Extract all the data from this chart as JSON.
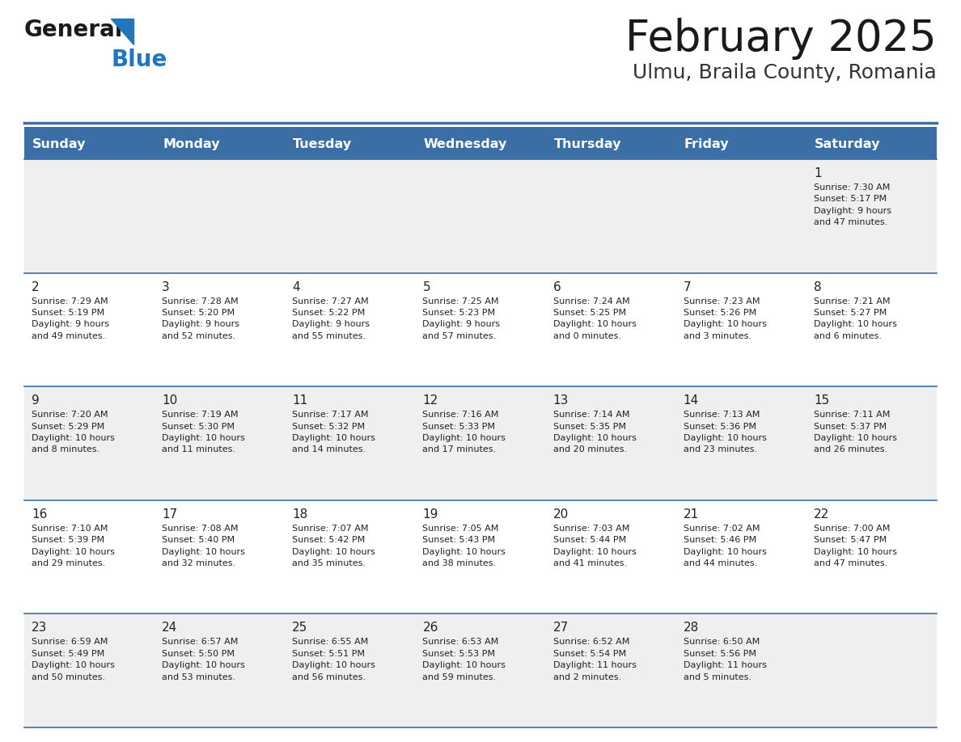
{
  "title": "February 2025",
  "subtitle": "Ulmu, Braila County, Romania",
  "header_bg": "#3a6ea5",
  "header_text_color": "#ffffff",
  "days_of_week": [
    "Sunday",
    "Monday",
    "Tuesday",
    "Wednesday",
    "Thursday",
    "Friday",
    "Saturday"
  ],
  "row_bg_even": "#efefef",
  "row_bg_odd": "#ffffff",
  "cell_text_color": "#222222",
  "separator_color": "#3a6ea5",
  "title_color": "#1a1a1a",
  "subtitle_color": "#333333",
  "logo_black": "#1a1a1a",
  "logo_blue": "#2176be",
  "calendar_data": [
    [
      {
        "day": "",
        "info": ""
      },
      {
        "day": "",
        "info": ""
      },
      {
        "day": "",
        "info": ""
      },
      {
        "day": "",
        "info": ""
      },
      {
        "day": "",
        "info": ""
      },
      {
        "day": "",
        "info": ""
      },
      {
        "day": "1",
        "info": "Sunrise: 7:30 AM\nSunset: 5:17 PM\nDaylight: 9 hours\nand 47 minutes."
      }
    ],
    [
      {
        "day": "2",
        "info": "Sunrise: 7:29 AM\nSunset: 5:19 PM\nDaylight: 9 hours\nand 49 minutes."
      },
      {
        "day": "3",
        "info": "Sunrise: 7:28 AM\nSunset: 5:20 PM\nDaylight: 9 hours\nand 52 minutes."
      },
      {
        "day": "4",
        "info": "Sunrise: 7:27 AM\nSunset: 5:22 PM\nDaylight: 9 hours\nand 55 minutes."
      },
      {
        "day": "5",
        "info": "Sunrise: 7:25 AM\nSunset: 5:23 PM\nDaylight: 9 hours\nand 57 minutes."
      },
      {
        "day": "6",
        "info": "Sunrise: 7:24 AM\nSunset: 5:25 PM\nDaylight: 10 hours\nand 0 minutes."
      },
      {
        "day": "7",
        "info": "Sunrise: 7:23 AM\nSunset: 5:26 PM\nDaylight: 10 hours\nand 3 minutes."
      },
      {
        "day": "8",
        "info": "Sunrise: 7:21 AM\nSunset: 5:27 PM\nDaylight: 10 hours\nand 6 minutes."
      }
    ],
    [
      {
        "day": "9",
        "info": "Sunrise: 7:20 AM\nSunset: 5:29 PM\nDaylight: 10 hours\nand 8 minutes."
      },
      {
        "day": "10",
        "info": "Sunrise: 7:19 AM\nSunset: 5:30 PM\nDaylight: 10 hours\nand 11 minutes."
      },
      {
        "day": "11",
        "info": "Sunrise: 7:17 AM\nSunset: 5:32 PM\nDaylight: 10 hours\nand 14 minutes."
      },
      {
        "day": "12",
        "info": "Sunrise: 7:16 AM\nSunset: 5:33 PM\nDaylight: 10 hours\nand 17 minutes."
      },
      {
        "day": "13",
        "info": "Sunrise: 7:14 AM\nSunset: 5:35 PM\nDaylight: 10 hours\nand 20 minutes."
      },
      {
        "day": "14",
        "info": "Sunrise: 7:13 AM\nSunset: 5:36 PM\nDaylight: 10 hours\nand 23 minutes."
      },
      {
        "day": "15",
        "info": "Sunrise: 7:11 AM\nSunset: 5:37 PM\nDaylight: 10 hours\nand 26 minutes."
      }
    ],
    [
      {
        "day": "16",
        "info": "Sunrise: 7:10 AM\nSunset: 5:39 PM\nDaylight: 10 hours\nand 29 minutes."
      },
      {
        "day": "17",
        "info": "Sunrise: 7:08 AM\nSunset: 5:40 PM\nDaylight: 10 hours\nand 32 minutes."
      },
      {
        "day": "18",
        "info": "Sunrise: 7:07 AM\nSunset: 5:42 PM\nDaylight: 10 hours\nand 35 minutes."
      },
      {
        "day": "19",
        "info": "Sunrise: 7:05 AM\nSunset: 5:43 PM\nDaylight: 10 hours\nand 38 minutes."
      },
      {
        "day": "20",
        "info": "Sunrise: 7:03 AM\nSunset: 5:44 PM\nDaylight: 10 hours\nand 41 minutes."
      },
      {
        "day": "21",
        "info": "Sunrise: 7:02 AM\nSunset: 5:46 PM\nDaylight: 10 hours\nand 44 minutes."
      },
      {
        "day": "22",
        "info": "Sunrise: 7:00 AM\nSunset: 5:47 PM\nDaylight: 10 hours\nand 47 minutes."
      }
    ],
    [
      {
        "day": "23",
        "info": "Sunrise: 6:59 AM\nSunset: 5:49 PM\nDaylight: 10 hours\nand 50 minutes."
      },
      {
        "day": "24",
        "info": "Sunrise: 6:57 AM\nSunset: 5:50 PM\nDaylight: 10 hours\nand 53 minutes."
      },
      {
        "day": "25",
        "info": "Sunrise: 6:55 AM\nSunset: 5:51 PM\nDaylight: 10 hours\nand 56 minutes."
      },
      {
        "day": "26",
        "info": "Sunrise: 6:53 AM\nSunset: 5:53 PM\nDaylight: 10 hours\nand 59 minutes."
      },
      {
        "day": "27",
        "info": "Sunrise: 6:52 AM\nSunset: 5:54 PM\nDaylight: 11 hours\nand 2 minutes."
      },
      {
        "day": "28",
        "info": "Sunrise: 6:50 AM\nSunset: 5:56 PM\nDaylight: 11 hours\nand 5 minutes."
      },
      {
        "day": "",
        "info": ""
      }
    ]
  ]
}
